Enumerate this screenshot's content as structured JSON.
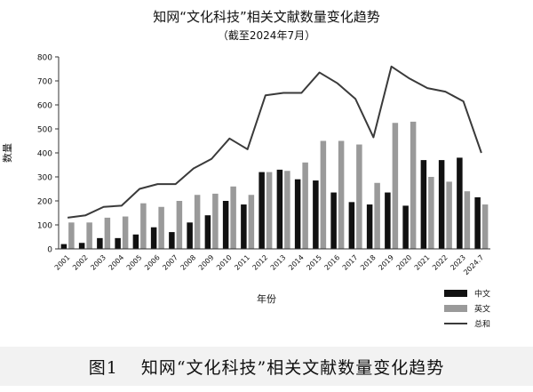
{
  "figure_caption": {
    "number": "图1",
    "text": "知网“文化科技”相关文献数量变化趋势"
  },
  "chart_data": {
    "type": "bar",
    "title": "知网“文化科技”相关文献数量变化趋势",
    "subtitle": "（截至2024年7月）",
    "xlabel": "年份",
    "ylabel": "数量",
    "ylim": [
      0,
      800
    ],
    "yticks": [
      0,
      100,
      200,
      300,
      400,
      500,
      600,
      700,
      800
    ],
    "grid": false,
    "legend_position": "bottom-right",
    "categories": [
      "2001",
      "2002",
      "2003",
      "2004",
      "2005",
      "2006",
      "2007",
      "2008",
      "2009",
      "2010",
      "2011",
      "2012",
      "2013",
      "2014",
      "2015",
      "2016",
      "2017",
      "2018",
      "2019",
      "2020",
      "2021",
      "2022",
      "2023",
      "2024.7"
    ],
    "series": [
      {
        "name": "中文",
        "type": "bar",
        "color": "#111111",
        "values": [
          20,
          25,
          45,
          45,
          60,
          90,
          70,
          110,
          140,
          200,
          185,
          320,
          330,
          290,
          285,
          235,
          195,
          185,
          235,
          180,
          370,
          370,
          380,
          215
        ]
      },
      {
        "name": "英文",
        "type": "bar",
        "color": "#9a9a9a",
        "values": [
          110,
          110,
          130,
          135,
          190,
          175,
          200,
          225,
          230,
          260,
          225,
          320,
          325,
          360,
          450,
          450,
          435,
          275,
          525,
          530,
          300,
          280,
          240,
          185
        ]
      },
      {
        "name": "总和",
        "type": "line",
        "color": "#3a3a3a",
        "values": [
          130,
          140,
          175,
          180,
          250,
          270,
          270,
          335,
          375,
          460,
          415,
          640,
          650,
          650,
          735,
          690,
          625,
          465,
          760,
          710,
          670,
          655,
          615,
          400
        ]
      }
    ]
  }
}
